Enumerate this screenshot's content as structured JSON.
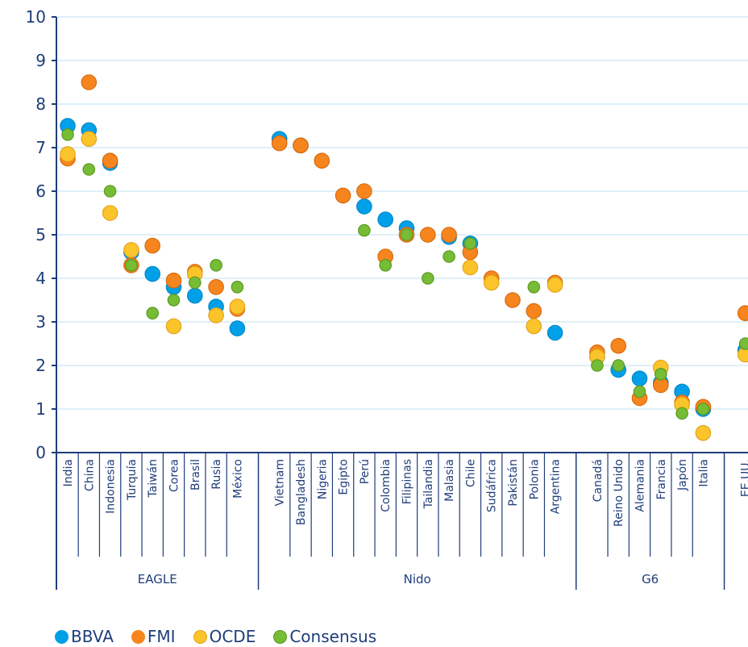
{
  "chart_data": {
    "type": "scatter",
    "ylim": [
      0,
      10
    ],
    "yticks": [
      0,
      1,
      2,
      3,
      4,
      5,
      6,
      7,
      8,
      9,
      10
    ],
    "grid": true,
    "legend_position": "bottom-left",
    "categories": [
      "India",
      "China",
      "Indonesia",
      "Turquía",
      "Taiwán",
      "Corea",
      "Brasil",
      "Rusia",
      "México",
      "Vietnam",
      "Bangladesh",
      "Nigeria",
      "Egipto",
      "Perú",
      "Colombia",
      "Filipinas",
      "Tailandia",
      "Malasia",
      "Chile",
      "Sudáfrica",
      "Pakistán",
      "Polonia",
      "Argentina",
      "Canadá",
      "Reino Unido",
      "Alemania",
      "Francia",
      "Japón",
      "Italia",
      "EE.UU."
    ],
    "groups": [
      {
        "name": "EAGLE",
        "count": 9
      },
      {
        "name": "Nido",
        "count": 14
      },
      {
        "name": "G6",
        "count": 6
      },
      {
        "name": "",
        "count": 1
      }
    ],
    "series": [
      {
        "name": "BBVA",
        "color": "#00a0e9",
        "values": [
          7.5,
          7.4,
          6.65,
          4.6,
          4.1,
          3.8,
          3.6,
          3.35,
          2.85,
          7.2,
          7.05,
          null,
          null,
          5.65,
          5.35,
          5.15,
          null,
          4.95,
          4.8,
          null,
          null,
          null,
          2.75,
          2.2,
          1.9,
          1.7,
          1.6,
          1.4,
          1.0,
          2.35
        ]
      },
      {
        "name": "FMI",
        "color": "#f7851e",
        "values": [
          6.75,
          8.5,
          6.7,
          4.3,
          4.75,
          3.95,
          4.15,
          3.8,
          3.3,
          7.1,
          7.05,
          6.7,
          5.9,
          6.0,
          4.5,
          5.0,
          5.0,
          5.0,
          4.6,
          4.0,
          3.5,
          3.25,
          3.9,
          2.3,
          2.45,
          1.25,
          1.55,
          1.15,
          1.05,
          3.2
        ]
      },
      {
        "name": "OCDE",
        "color": "#fcc42b",
        "values": [
          6.85,
          7.2,
          5.5,
          4.65,
          null,
          2.9,
          4.1,
          3.15,
          3.35,
          null,
          null,
          null,
          null,
          null,
          null,
          null,
          null,
          null,
          4.25,
          3.9,
          null,
          2.9,
          3.85,
          2.2,
          null,
          null,
          1.95,
          1.1,
          0.45,
          2.25
        ]
      },
      {
        "name": "Consensus",
        "color": "#77bc35",
        "values": [
          7.3,
          6.5,
          6.0,
          4.3,
          3.2,
          3.5,
          3.9,
          4.3,
          3.8,
          null,
          null,
          null,
          null,
          5.1,
          4.3,
          5.0,
          4.0,
          4.5,
          4.8,
          null,
          null,
          3.8,
          null,
          2.0,
          2.0,
          1.4,
          1.8,
          0.9,
          1.0,
          2.5
        ]
      }
    ]
  }
}
